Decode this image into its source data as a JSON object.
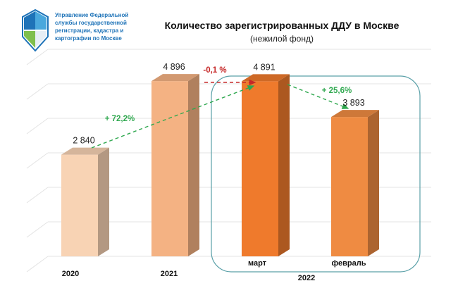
{
  "header": {
    "org_lines": [
      "Управление Федеральной",
      "службы государственной",
      "регистрации, кадастра и",
      "картографии по Москве"
    ]
  },
  "chart_data": {
    "type": "bar",
    "title": "Количество зарегистрированных ДДУ в Москве",
    "subtitle": "(нежилой фонд)",
    "categories": [
      "2020",
      "2021",
      "март",
      "февраль"
    ],
    "group_label": "2022",
    "values": [
      2840,
      4896,
      4891,
      3893
    ],
    "value_labels": [
      "2 840",
      "4 896",
      "4 891",
      "3 893"
    ],
    "ylim": [
      0,
      6000
    ],
    "grid": true,
    "legend": "none",
    "colors": [
      "#f8d3b4",
      "#f4b283",
      "#ef7a2c",
      "#ef8b42"
    ],
    "annotations": [
      {
        "text": "+ 72,2%",
        "from": 0,
        "to": 2,
        "color": "#2fa84f"
      },
      {
        "text": "-0,1 %",
        "from": 1,
        "to": 2,
        "color": "#c62828"
      },
      {
        "text": "+ 25,6%",
        "from": 2,
        "to": 3,
        "color": "#2fa84f"
      }
    ]
  }
}
